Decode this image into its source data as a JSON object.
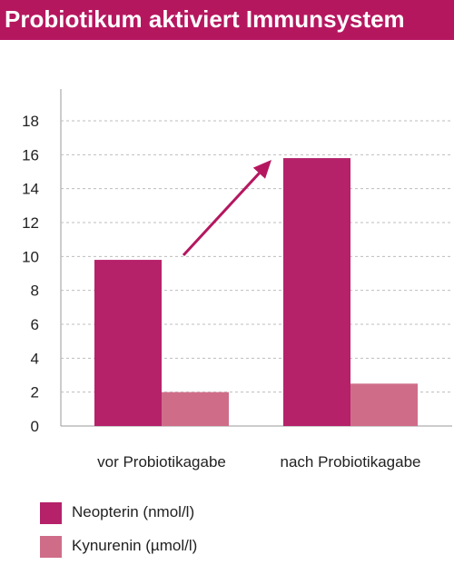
{
  "header": {
    "title": "Probiotikum aktiviert Immunsystem"
  },
  "colors": {
    "header_bg": "#b5175f",
    "neopterin": "#b5226a",
    "kynurenin": "#cf6d89",
    "arrow": "#b5175f",
    "grid": "#bdbdbd"
  },
  "chart_data": {
    "type": "bar",
    "title": "",
    "xlabel": "",
    "ylabel": "",
    "categories": [
      "vor Probiotikagabe",
      "nach Probiotikagabe"
    ],
    "series": [
      {
        "name": "Neopterin (nmol/l)",
        "values": [
          9.8,
          15.8
        ]
      },
      {
        "name": "Kynurenin (µmol/l)",
        "values": [
          2.0,
          2.5
        ]
      }
    ],
    "ylim": [
      0,
      18
    ],
    "yticks": [
      0,
      2,
      4,
      6,
      8,
      10,
      12,
      14,
      16,
      18
    ],
    "grid": "horizontal dashed",
    "legend_position": "bottom-left",
    "annotation": "arrow pointing from the first Neopterin bar up to the second"
  }
}
